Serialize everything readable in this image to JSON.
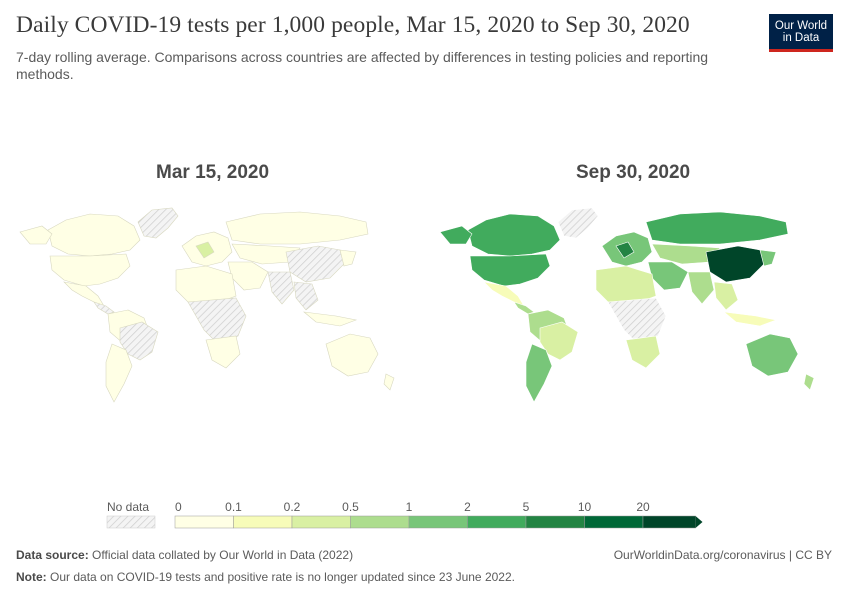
{
  "title": "Daily COVID-19 tests per 1,000 people, Mar 15, 2020 to Sep 30, 2020",
  "subtitle": "7-day rolling average. Comparisons across countries are affected by differences in testing policies and reporting methods.",
  "logo": {
    "line1": "Our World",
    "line2": "in Data"
  },
  "maps": [
    {
      "label": "Mar 15, 2020"
    },
    {
      "label": "Sep 30, 2020"
    }
  ],
  "legend": {
    "no_data_label": "No data",
    "ticks": [
      "0",
      "0.1",
      "0.2",
      "0.5",
      "1",
      "2",
      "5",
      "10",
      "20"
    ],
    "colors": [
      "#ffffe5",
      "#f7fcb9",
      "#d9f0a3",
      "#addd8e",
      "#78c679",
      "#41ab5d",
      "#238443",
      "#006837",
      "#004529"
    ]
  },
  "footer": {
    "source_label": "Data source:",
    "source_text": "Official data collated by Our World in Data (2022)",
    "url": "OurWorldinData.org/coronavirus | CC BY",
    "note_label": "Note:",
    "note_text": "Our data on COVID-19 tests and positive rate is no longer updated since 23 June 2022."
  },
  "chart_data": {
    "type": "choropleth-map",
    "metric": "Daily COVID-19 tests per 1,000 people (7-day rolling average)",
    "dates": [
      "Mar 15, 2020",
      "Sep 30, 2020"
    ],
    "scale_bins": [
      0,
      0.1,
      0.2,
      0.5,
      1,
      2,
      5,
      10,
      20
    ]
  }
}
